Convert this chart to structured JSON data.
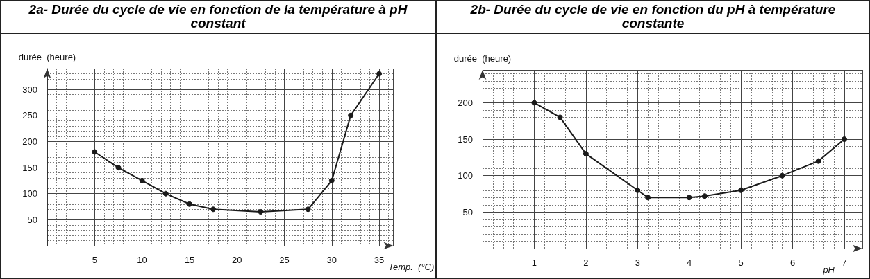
{
  "chart_data": [
    {
      "type": "line",
      "title": "2a- Durée du cycle de vie en fonction de la température à pH constant",
      "xlabel": "Temp.  (°C)",
      "ylabel": "durée  (heure)",
      "color": "#1a1a1a",
      "marker": "circle",
      "grid": true,
      "x": [
        5,
        7.5,
        10,
        12.5,
        15,
        17.5,
        22.5,
        27.5,
        30,
        32,
        35
      ],
      "values": [
        180,
        150,
        125,
        100,
        80,
        70,
        65,
        70,
        125,
        250,
        330
      ],
      "xlim": [
        0,
        36.5
      ],
      "ylim": [
        0,
        340
      ],
      "xticks": [
        5,
        10,
        15,
        20,
        25,
        30,
        35
      ],
      "yticks": [
        50,
        100,
        150,
        200,
        250,
        300
      ]
    },
    {
      "type": "line",
      "title": "2b- Durée du cycle de vie en fonction du pH à température constante",
      "xlabel": "pH",
      "ylabel": "durée  (heure)",
      "color": "#1a1a1a",
      "marker": "circle",
      "grid": true,
      "x": [
        1,
        1.5,
        2,
        3,
        3.2,
        4,
        4.3,
        5,
        5.8,
        6.5,
        7
      ],
      "values": [
        200,
        180,
        130,
        80,
        70,
        70,
        72,
        80,
        100,
        120,
        150
      ],
      "xlim": [
        0,
        7.35
      ],
      "ylim": [
        0,
        245
      ],
      "xticks": [
        1,
        2,
        3,
        4,
        5,
        6,
        7
      ],
      "yticks": [
        50,
        100,
        150,
        200
      ]
    }
  ]
}
